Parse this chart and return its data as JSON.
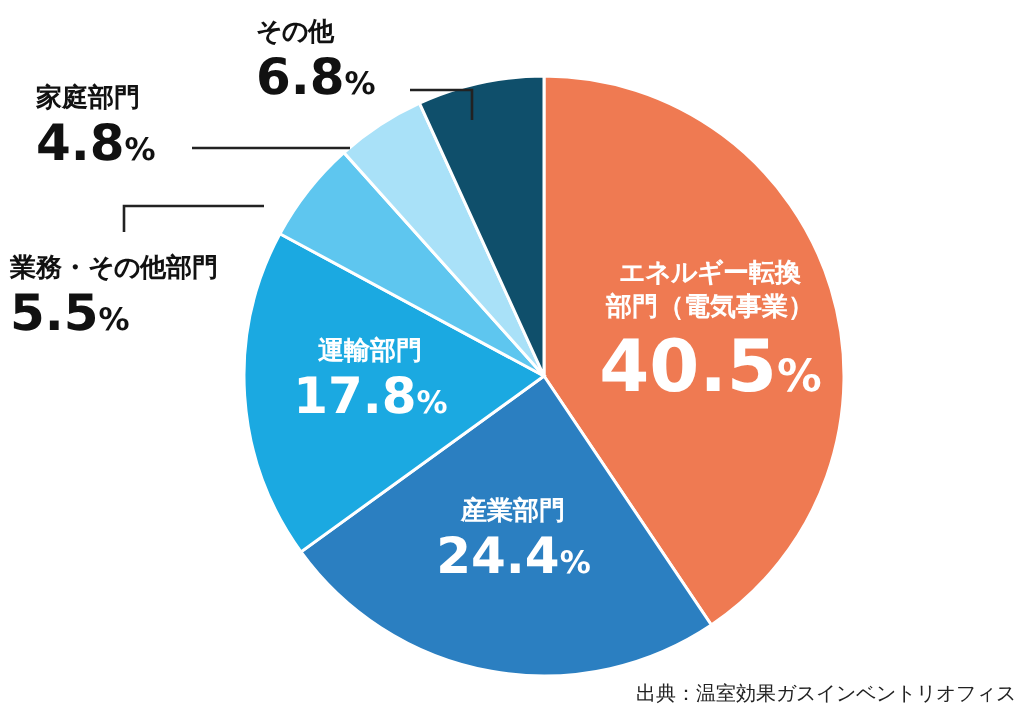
{
  "chart_data": {
    "type": "pie",
    "categories": [
      "エネルギー転換部門（電気事業）",
      "産業部門",
      "運輸部門",
      "業務・その他部門",
      "家庭部門",
      "その他"
    ],
    "values": [
      40.5,
      24.4,
      17.8,
      5.5,
      4.8,
      6.8
    ],
    "value_labels": [
      "40.5%",
      "24.4%",
      "17.8%",
      "5.5%",
      "4.8%",
      "6.8%"
    ],
    "colors": [
      "#ef7a52",
      "#2b7fc1",
      "#1ba9e1",
      "#5ec6ef",
      "#a9e1f8",
      "#0f4f6b"
    ],
    "annotations": [
      "出典：温室効果ガスインベントリオフィス"
    ]
  }
}
